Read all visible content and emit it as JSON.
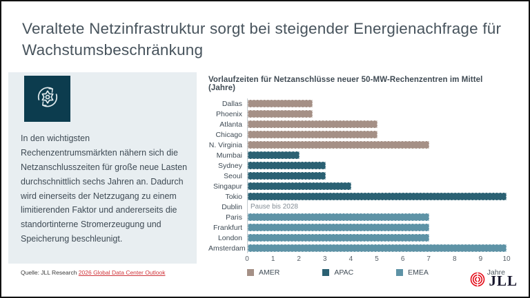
{
  "slide": {
    "title": "Veraltete Netzinfrastruktur sorgt bei steigender Energienachfrage für Wachstumsbeschränkung",
    "highlight": {
      "icon": "gear-refresh-icon",
      "text": "In den wichtigsten Rechenzentrumsmärkten nähern sich die Netzanschlusszeiten für große neue Lasten durchschnittlich sechs Jahren an. Dadurch wird einerseits der Netzzugang zu einem limitierenden Faktor und andererseits die standortinterne Stromerzeugung und Speicherung beschleunigt."
    },
    "source": {
      "prefix": "Quelle: JLL Research ",
      "link": "2026 Global Data Center Outlook"
    },
    "logo_text": "JLL"
  },
  "chart_data": {
    "type": "bar",
    "orientation": "horizontal",
    "title": "Vorlaufzeiten für Netzanschlüsse neuer 50-MW-Rechenzentren im Mittel (Jahre)",
    "xlabel": "Jahre",
    "xlim": [
      0,
      10
    ],
    "xticks": [
      0,
      1,
      2,
      3,
      4,
      5,
      6,
      7,
      8,
      9,
      10
    ],
    "grid": false,
    "legend_position": "bottom",
    "categories": [
      "Dallas",
      "Phoenix",
      "Atlanta",
      "Chicago",
      "N. Virginia",
      "Mumbai",
      "Sydney",
      "Seoul",
      "Singapur",
      "Tokio",
      "Dublin",
      "Paris",
      "Frankfurt",
      "London",
      "Amsterdam"
    ],
    "values": [
      2.5,
      2.5,
      5,
      5,
      7,
      2,
      3,
      3,
      4,
      10,
      null,
      7,
      7,
      7,
      10
    ],
    "regions": [
      "AMER",
      "AMER",
      "AMER",
      "AMER",
      "AMER",
      "APAC",
      "APAC",
      "APAC",
      "APAC",
      "APAC",
      "EMEA",
      "EMEA",
      "EMEA",
      "EMEA",
      "EMEA"
    ],
    "annotations": [
      {
        "category": "Dublin",
        "text": "Pause bis 2028"
      }
    ],
    "series_colors": {
      "AMER": "#a59086",
      "APAC": "#2b6173",
      "EMEA": "#5e93a6"
    },
    "legend": [
      "AMER",
      "APAC",
      "EMEA"
    ]
  },
  "colors": {
    "accent_dark_teal": "#0c3c4e",
    "panel_bg": "#e8eef1",
    "title_text": "#47535c",
    "link_red": "#cf3339",
    "logo_red": "#e30613"
  }
}
